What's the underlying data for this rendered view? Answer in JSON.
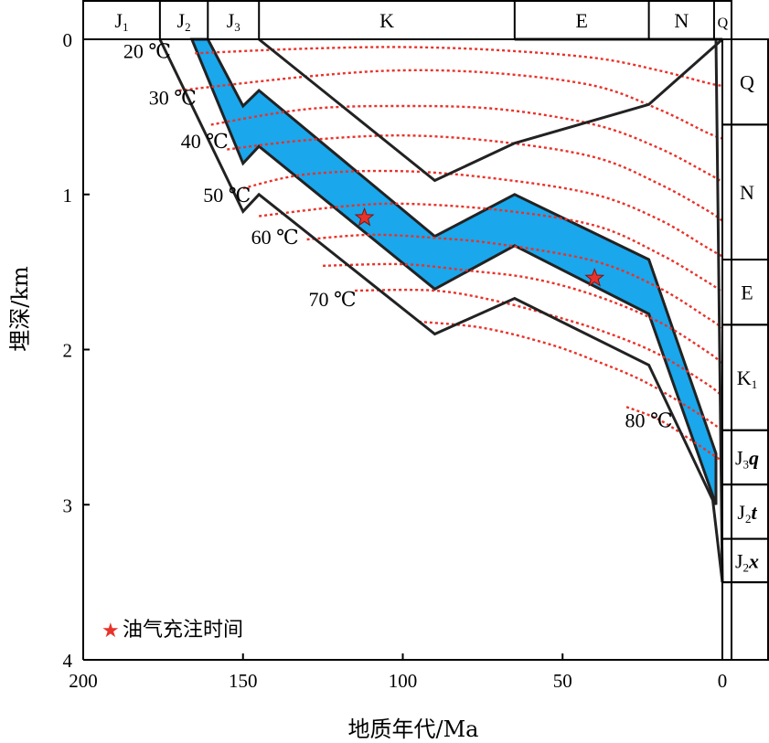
{
  "chart_data": {
    "type": "line",
    "x_axis": {
      "label": "地质年代/Ma",
      "range": [
        200,
        0
      ],
      "ticks": [
        200,
        150,
        100,
        50,
        0
      ],
      "tick_labels": [
        "200",
        "150",
        "100",
        "50",
        "0"
      ]
    },
    "y_axis": {
      "label": "埋深/km",
      "range": [
        0,
        4
      ],
      "ticks": [
        0,
        1,
        2,
        3,
        4
      ],
      "tick_labels": [
        "0",
        "1",
        "2",
        "3",
        "4"
      ]
    },
    "periods": [
      {
        "label": "J",
        "sub": "1",
        "start": 200,
        "end": 176
      },
      {
        "label": "J",
        "sub": "2",
        "start": 176,
        "end": 161
      },
      {
        "label": "J",
        "sub": "3",
        "start": 161,
        "end": 145
      },
      {
        "label": "K",
        "sub": "",
        "start": 145,
        "end": 65
      },
      {
        "label": "E",
        "sub": "",
        "start": 65,
        "end": 23
      },
      {
        "label": "N",
        "sub": "",
        "start": 23,
        "end": 2.6
      },
      {
        "label": "Q",
        "sub": "",
        "start": 2.6,
        "end": 0
      }
    ],
    "strata_column": [
      {
        "label": "Q",
        "sub": "",
        "ital": "",
        "top": 0.0,
        "bottom": 0.55
      },
      {
        "label": "N",
        "sub": "",
        "ital": "",
        "top": 0.55,
        "bottom": 1.42
      },
      {
        "label": "E",
        "sub": "",
        "ital": "",
        "top": 1.42,
        "bottom": 1.84
      },
      {
        "label": "K",
        "sub": "1",
        "ital": "",
        "top": 1.84,
        "bottom": 2.52
      },
      {
        "label": "J",
        "sub": "3",
        "ital": "q",
        "top": 2.52,
        "bottom": 2.87
      },
      {
        "label": "J",
        "sub": "2",
        "ital": "t",
        "top": 2.87,
        "bottom": 3.22
      },
      {
        "label": "J",
        "sub": "2",
        "ital": "x",
        "top": 3.22,
        "bottom": 3.5
      },
      {
        "label": "",
        "sub": "",
        "ital": "",
        "top": 3.5,
        "bottom": 4.0
      }
    ],
    "burial_curves": [
      {
        "points": [
          [
            145,
            0
          ],
          [
            90,
            0.91
          ],
          [
            65,
            0.67
          ],
          [
            23,
            0.42
          ],
          [
            0,
            0
          ]
        ]
      },
      {
        "points": [
          [
            176,
            0
          ],
          [
            150,
            1.11
          ],
          [
            145,
            1.0
          ],
          [
            90,
            1.9
          ],
          [
            65,
            1.67
          ],
          [
            23,
            2.1
          ],
          [
            3,
            2.97
          ],
          [
            0,
            3.5
          ]
        ]
      },
      {
        "points": [
          [
            2,
            0
          ],
          [
            0,
            3.5
          ]
        ]
      },
      {
        "points": [
          [
            65,
            0
          ],
          [
            23,
            0
          ],
          [
            2.6,
            0
          ],
          [
            0,
            0
          ]
        ]
      }
    ],
    "reservoir_band": {
      "upper": [
        [
          161,
          0
        ],
        [
          150,
          0.43
        ],
        [
          145,
          0.33
        ],
        [
          90,
          1.27
        ],
        [
          65,
          1.0
        ],
        [
          23,
          1.42
        ],
        [
          2,
          2.67
        ]
      ],
      "lower": [
        [
          166,
          0
        ],
        [
          150,
          0.8
        ],
        [
          145,
          0.69
        ],
        [
          90,
          1.61
        ],
        [
          65,
          1.33
        ],
        [
          23,
          1.77
        ],
        [
          2,
          3.0
        ]
      ]
    },
    "isotherms": [
      {
        "label": "20 ℃",
        "points": [
          [
            165,
            0.09
          ],
          [
            130,
            0.06
          ],
          [
            100,
            0.05
          ],
          [
            70,
            0.07
          ],
          [
            40,
            0.12
          ],
          [
            20,
            0.2
          ],
          [
            5,
            0.28
          ],
          [
            0,
            0.3
          ]
        ]
      },
      {
        "label": "30 ℃",
        "points": [
          [
            170,
            0.33
          ],
          [
            130,
            0.24
          ],
          [
            100,
            0.2
          ],
          [
            70,
            0.22
          ],
          [
            40,
            0.3
          ],
          [
            20,
            0.45
          ],
          [
            5,
            0.6
          ],
          [
            0,
            0.64
          ]
        ]
      },
      {
        "label": "40 ℃",
        "points": [
          [
            160,
            0.55
          ],
          [
            130,
            0.45
          ],
          [
            100,
            0.43
          ],
          [
            70,
            0.45
          ],
          [
            40,
            0.55
          ],
          [
            20,
            0.7
          ],
          [
            5,
            0.86
          ],
          [
            0,
            0.92
          ]
        ]
      },
      {
        "label": "",
        "points": [
          [
            155,
            0.71
          ],
          [
            130,
            0.65
          ],
          [
            100,
            0.62
          ],
          [
            70,
            0.66
          ],
          [
            40,
            0.76
          ],
          [
            20,
            0.93
          ],
          [
            5,
            1.1
          ],
          [
            0,
            1.17
          ]
        ]
      },
      {
        "label": "50 ℃",
        "points": [
          [
            150,
            0.96
          ],
          [
            130,
            0.87
          ],
          [
            100,
            0.85
          ],
          [
            70,
            0.9
          ],
          [
            40,
            1.0
          ],
          [
            20,
            1.16
          ],
          [
            5,
            1.34
          ],
          [
            0,
            1.4
          ]
        ]
      },
      {
        "label": "",
        "points": [
          [
            145,
            1.14
          ],
          [
            120,
            1.08
          ],
          [
            100,
            1.06
          ],
          [
            70,
            1.1
          ],
          [
            40,
            1.2
          ],
          [
            20,
            1.38
          ],
          [
            5,
            1.56
          ],
          [
            0,
            1.63
          ]
        ]
      },
      {
        "label": "60 ℃",
        "points": [
          [
            130,
            1.29
          ],
          [
            110,
            1.26
          ],
          [
            90,
            1.28
          ],
          [
            70,
            1.32
          ],
          [
            40,
            1.43
          ],
          [
            20,
            1.6
          ],
          [
            5,
            1.79
          ],
          [
            0,
            1.86
          ]
        ]
      },
      {
        "label": "",
        "points": [
          [
            125,
            1.46
          ],
          [
            100,
            1.45
          ],
          [
            80,
            1.49
          ],
          [
            60,
            1.54
          ],
          [
            40,
            1.65
          ],
          [
            20,
            1.82
          ],
          [
            5,
            2.01
          ],
          [
            0,
            2.09
          ]
        ]
      },
      {
        "label": "70 ℃",
        "points": [
          [
            115,
            1.62
          ],
          [
            90,
            1.62
          ],
          [
            70,
            1.69
          ],
          [
            50,
            1.8
          ],
          [
            35,
            1.9
          ],
          [
            20,
            2.03
          ],
          [
            5,
            2.22
          ],
          [
            0,
            2.3
          ]
        ]
      },
      {
        "label": "",
        "points": [
          [
            95,
            1.82
          ],
          [
            75,
            1.86
          ],
          [
            55,
            1.96
          ],
          [
            40,
            2.07
          ],
          [
            25,
            2.2
          ],
          [
            10,
            2.38
          ],
          [
            0,
            2.52
          ]
        ]
      },
      {
        "label": "80 ℃",
        "points": [
          [
            30,
            2.37
          ],
          [
            20,
            2.45
          ],
          [
            10,
            2.58
          ],
          [
            0,
            2.72
          ]
        ]
      }
    ],
    "isotherm_labels": [
      {
        "text": "20 ℃",
        "x": 180,
        "y": 0.12
      },
      {
        "text": "30 ℃",
        "x": 172,
        "y": 0.42
      },
      {
        "text": "40 ℃",
        "x": 162,
        "y": 0.7
      },
      {
        "text": "50 ℃",
        "x": 155,
        "y": 1.05
      },
      {
        "text": "60 ℃",
        "x": 140,
        "y": 1.32
      },
      {
        "text": "70 ℃",
        "x": 122,
        "y": 1.72
      },
      {
        "text": "80 ℃",
        "x": 23,
        "y": 2.5
      }
    ],
    "charging_events": [
      {
        "x": 112,
        "y": 1.15
      },
      {
        "x": 40,
        "y": 1.54
      }
    ],
    "legend": {
      "marker": "★",
      "label": "油气充注时间",
      "position": "bottom-left"
    },
    "colors": {
      "band": "#1aa7ec",
      "isotherm": "#e8332a",
      "curve": "#222222",
      "star": "#e8332a"
    }
  }
}
